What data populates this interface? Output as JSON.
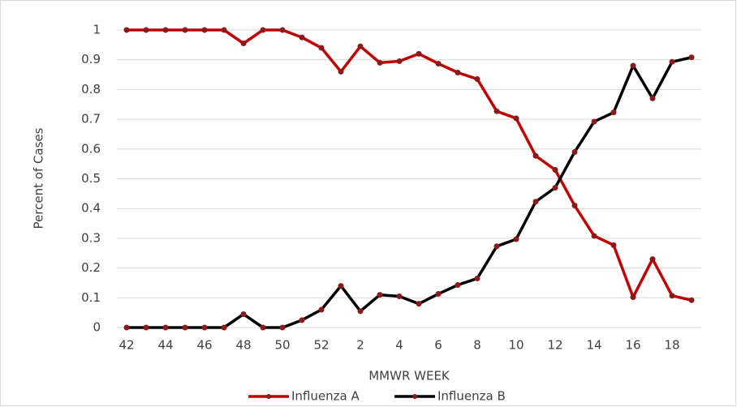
{
  "chart_data": {
    "type": "line",
    "xlabel": "MMWR WEEK",
    "ylabel": "Percent of Cases",
    "categories": [
      "42",
      null,
      "44",
      null,
      "46",
      null,
      "48",
      null,
      "50",
      null,
      "52",
      null,
      "2",
      null,
      "4",
      null,
      "6",
      null,
      "8",
      null,
      "10",
      null,
      "12",
      null,
      "14",
      null,
      "16",
      null,
      "18",
      null
    ],
    "series": [
      {
        "name": "Influenza A",
        "color": "#c00000",
        "values": [
          1,
          1,
          1,
          1,
          1,
          1,
          0.955,
          1,
          1,
          0.975,
          0.94,
          0.86,
          0.945,
          0.89,
          0.895,
          0.92,
          0.887,
          0.857,
          0.835,
          0.727,
          0.703,
          0.577,
          0.53,
          0.41,
          0.308,
          0.277,
          0.102,
          0.23,
          0.107,
          0.092
        ]
      },
      {
        "name": "Influenza B",
        "color": "#000000",
        "values": [
          0,
          0,
          0,
          0,
          0,
          0,
          0.045,
          0,
          0,
          0.025,
          0.06,
          0.14,
          0.055,
          0.11,
          0.105,
          0.08,
          0.113,
          0.143,
          0.165,
          0.273,
          0.297,
          0.423,
          0.47,
          0.59,
          0.692,
          0.723,
          0.88,
          0.77,
          0.893,
          0.908
        ]
      }
    ],
    "ylim": [
      0,
      1
    ],
    "yticks": [
      0,
      0.1,
      0.2,
      0.3,
      0.4,
      0.5,
      0.6,
      0.7,
      0.8,
      0.9,
      1
    ],
    "grid": true,
    "legend": "bottom"
  }
}
